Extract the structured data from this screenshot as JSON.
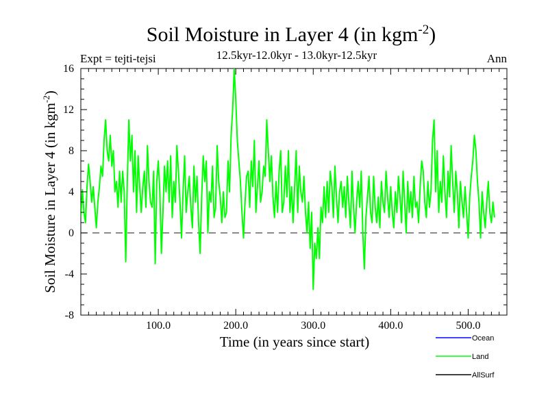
{
  "chart_data": {
    "type": "line",
    "title_main": "Soil Moisture in Layer 4 (in kgm",
    "title_sup": "-2",
    "title_close": ")",
    "subtitle": "12.5kyr-12.0kyr - 13.0kyr-12.5kyr",
    "expt_label": "Expt = tejti-tejsi",
    "season_label": "Ann",
    "xlabel": "Time (in years since start)",
    "ylabel_main": "Soil Moisture in Layer 4 (in kgm",
    "ylabel_sup": "-2",
    "ylabel_close": ")",
    "xlim": [
      0,
      550
    ],
    "ylim": [
      -8,
      16
    ],
    "xticks": [
      100,
      200,
      300,
      400,
      500
    ],
    "xtick_labels": [
      "100.0",
      "200.0",
      "300.0",
      "400.0",
      "500.0"
    ],
    "yticks": [
      -8,
      -4,
      0,
      4,
      8,
      12,
      16
    ],
    "ytick_labels": [
      "-8",
      "-4",
      "0",
      "4",
      "8",
      "12",
      "16"
    ],
    "zero_line": 0,
    "legend_position": "bottom-right",
    "legend": [
      {
        "name": "Ocean",
        "color": "#0000ff"
      },
      {
        "name": "Land",
        "color": "#00ff00"
      },
      {
        "name": "AllSurf",
        "color": "#000000"
      }
    ],
    "series": [
      {
        "name": "Land",
        "color": "#00ff00",
        "x_start": 0,
        "x_step": 2,
        "values": [
          1.5,
          4.2,
          2.0,
          1.0,
          4.5,
          6.7,
          5.0,
          3.0,
          4.5,
          2.5,
          0.5,
          3.0,
          4.5,
          6.5,
          5.5,
          9.0,
          11.0,
          8.0,
          7.0,
          9.5,
          6.5,
          8.0,
          4.0,
          5.0,
          2.5,
          6.0,
          3.0,
          6.0,
          4.0,
          -2.8,
          5.0,
          11.0,
          7.0,
          9.5,
          4.0,
          8.0,
          2.0,
          7.5,
          4.5,
          2.0,
          4.5,
          6.0,
          2.5,
          8.5,
          5.0,
          3.0,
          2.5,
          6.0,
          -3.0,
          5.0,
          7.0,
          4.0,
          -2.0,
          2.0,
          6.5,
          4.0,
          7.0,
          3.0,
          7.5,
          1.5,
          5.0,
          3.0,
          8.5,
          6.0,
          3.0,
          -0.5,
          4.0,
          7.5,
          2.0,
          4.0,
          5.5,
          2.5,
          0.5,
          6.5,
          3.0,
          5.5,
          1.0,
          -2.0,
          3.5,
          7.5,
          5.0,
          7.0,
          0.0,
          4.0,
          3.0,
          6.5,
          1.5,
          2.5,
          8.5,
          5.0,
          3.5,
          1.0,
          4.0,
          1.5,
          2.0,
          7.0,
          4.0,
          9.5,
          12.0,
          16.0,
          13.0,
          9.0,
          7.0,
          5.0,
          2.0,
          -0.5,
          3.0,
          5.5,
          6.0,
          2.5,
          7.0,
          4.5,
          9.0,
          2.0,
          4.5,
          7.0,
          3.0,
          4.0,
          6.5,
          5.5,
          11.0,
          8.0,
          5.0,
          7.5,
          3.5,
          1.5,
          5.0,
          2.0,
          6.0,
          8.0,
          2.0,
          3.0,
          6.5,
          3.5,
          8.0,
          2.0,
          4.5,
          1.0,
          4.5,
          8.0,
          2.0,
          6.5,
          4.0,
          3.0,
          5.5,
          2.0,
          0.0,
          3.0,
          -1.5,
          2.0,
          -5.5,
          -1.0,
          -2.5,
          0.5,
          -2.5,
          2.5,
          1.0,
          4.5,
          1.5,
          5.0,
          2.0,
          6.0,
          4.5,
          1.5,
          6.5,
          3.5,
          1.0,
          4.0,
          5.0,
          2.5,
          4.5,
          1.5,
          5.5,
          3.0,
          0.5,
          6.0,
          2.5,
          0.0,
          3.0,
          5.0,
          2.5,
          6.0,
          0.0,
          -3.5,
          1.5,
          3.5,
          5.5,
          2.0,
          1.0,
          5.5,
          2.5,
          1.0,
          3.5,
          0.5,
          5.0,
          3.0,
          2.0,
          6.0,
          3.5,
          1.5,
          4.5,
          2.0,
          0.5,
          4.0,
          2.0,
          5.5,
          3.5,
          1.0,
          6.0,
          3.0,
          0.0,
          5.0,
          2.0,
          4.0,
          1.5,
          5.5,
          2.5,
          3.0,
          1.0,
          4.5,
          7.0,
          6.0,
          3.0,
          1.5,
          5.0,
          2.5,
          4.0,
          9.0,
          11.0,
          4.0,
          8.0,
          2.0,
          5.0,
          3.0,
          7.5,
          4.0,
          1.5,
          6.0,
          3.5,
          8.5,
          5.0,
          2.0,
          6.0,
          4.0,
          0.5,
          5.0,
          3.0,
          1.5,
          4.5,
          2.0,
          -0.5,
          3.5,
          5.5,
          7.0,
          9.5,
          8.0,
          5.0,
          3.0,
          -0.5,
          4.0,
          2.0,
          0.5,
          3.0,
          5.0,
          2.0,
          1.0,
          3.0,
          1.5
        ]
      }
    ]
  }
}
